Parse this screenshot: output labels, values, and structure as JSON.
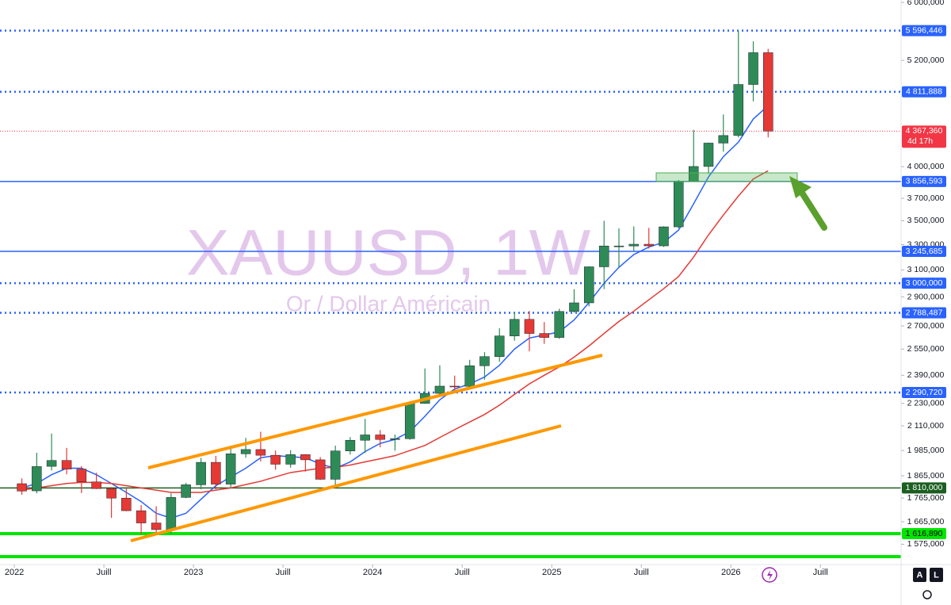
{
  "chart_data": {
    "type": "candlestick",
    "title": "XAUUSD, 1W",
    "subtitle": "Or / Dollar Américain",
    "log_scale": true,
    "up_color": "#2e8b57",
    "down_color": "#e53935",
    "xlim": [
      2021.92,
      2026.95
    ],
    "xticks": [
      2022,
      {
        "value": 2022.5,
        "label": "Juill"
      },
      2023,
      {
        "value": 2023.5,
        "label": "Juill"
      },
      2024,
      {
        "value": 2024.5,
        "label": "Juill"
      },
      2025,
      {
        "value": 2025.5,
        "label": "Juill"
      },
      2026,
      {
        "value": 2026.5,
        "label": "Juill"
      }
    ],
    "ylim": [
      1498,
      6036
    ],
    "yticks": [
      {
        "value": 1575,
        "label": "1 575,000"
      },
      {
        "value": 1665,
        "label": "1 665,000"
      },
      {
        "value": 1765,
        "label": "1 765,000"
      },
      {
        "value": 1865,
        "label": "1 865,000"
      },
      {
        "value": 1985,
        "label": "1 985,000"
      },
      {
        "value": 2110,
        "label": "2 110,000"
      },
      {
        "value": 2230,
        "label": "2 230,000"
      },
      {
        "value": 2390,
        "label": "2 390,000"
      },
      {
        "value": 2550,
        "label": "2 550,000"
      },
      {
        "value": 2700,
        "label": "2 700,000"
      },
      {
        "value": 2900,
        "label": "2 900,000"
      },
      {
        "value": 3100,
        "label": "3 100,000"
      },
      {
        "value": 3300,
        "label": "3 300,000"
      },
      {
        "value": 3500,
        "label": "3 500,000"
      },
      {
        "value": 3700,
        "label": "3 700,000"
      },
      {
        "value": 4000,
        "label": "4 000,000"
      },
      {
        "value": 5200,
        "label": "5 200,000"
      },
      {
        "value": 6000,
        "label": "6 000,000"
      }
    ],
    "x": [
      2022.042,
      2022.125,
      2022.208,
      2022.292,
      2022.375,
      2022.458,
      2022.542,
      2022.625,
      2022.708,
      2022.792,
      2022.875,
      2022.958,
      2023.042,
      2023.125,
      2023.208,
      2023.292,
      2023.375,
      2023.458,
      2023.542,
      2023.625,
      2023.708,
      2023.792,
      2023.875,
      2023.958,
      2024.042,
      2024.125,
      2024.208,
      2024.292,
      2024.375,
      2024.458,
      2024.542,
      2024.625,
      2024.708,
      2024.792,
      2024.875,
      2024.958,
      2025.042,
      2025.125,
      2025.208,
      2025.292,
      2025.375,
      2025.458,
      2025.542,
      2025.625,
      2025.708,
      2025.792,
      2025.875,
      2025.958,
      2026.042,
      2026.125,
      2026.208
    ],
    "open": [
      1829,
      1797,
      1909,
      1937,
      1896,
      1837,
      1807,
      1765,
      1711,
      1660,
      1633,
      1768,
      1824,
      1928,
      1827,
      1969,
      1990,
      1962,
      1919,
      1965,
      1940,
      1849,
      1983,
      2036,
      2063,
      2040,
      2044,
      2230,
      2286,
      2327,
      2326,
      2447,
      2503,
      2634,
      2744,
      2650,
      2624,
      2798,
      2858,
      3124,
      3289,
      3289,
      3303,
      3290,
      3448,
      3858,
      4002,
      4240,
      4320,
      4900,
      5300
    ],
    "high": [
      1853,
      1974,
      2070,
      1998,
      1910,
      1879,
      1814,
      1807,
      1735,
      1730,
      1786,
      1833,
      1949,
      1959,
      2009,
      2048,
      2079,
      1985,
      1987,
      1967,
      1953,
      2009,
      2052,
      2146,
      2088,
      2065,
      2223,
      2431,
      2450,
      2388,
      2483,
      2531,
      2685,
      2790,
      2801,
      2726,
      2817,
      2956,
      3128,
      3500,
      3435,
      3452,
      3439,
      3453,
      3871,
      4381,
      4245,
      4550,
      5596,
      5450,
      5350
    ],
    "low": [
      1780,
      1786,
      1890,
      1872,
      1787,
      1805,
      1681,
      1709,
      1615,
      1617,
      1616,
      1765,
      1804,
      1804,
      1810,
      1950,
      1932,
      1893,
      1903,
      1884,
      1846,
      1810,
      1965,
      1973,
      2001,
      1984,
      2039,
      2228,
      2277,
      2286,
      2353,
      2364,
      2471,
      2603,
      2536,
      2583,
      2615,
      2790,
      2833,
      2957,
      3121,
      3247,
      3268,
      3281,
      3436,
      3886,
      3930,
      4150,
      4300,
      4700,
      4300
    ],
    "close": [
      1796,
      1908,
      1937,
      1896,
      1837,
      1807,
      1765,
      1711,
      1660,
      1633,
      1768,
      1824,
      1928,
      1827,
      1969,
      1990,
      1962,
      1919,
      1965,
      1940,
      1849,
      1983,
      2036,
      2063,
      2040,
      2044,
      2230,
      2286,
      2327,
      2326,
      2447,
      2503,
      2634,
      2744,
      2650,
      2624,
      2798,
      2858,
      3124,
      3289,
      3289,
      3303,
      3290,
      3448,
      3858,
      4002,
      4240,
      4320,
      4900,
      5300,
      4367.36
    ],
    "series": [
      {
        "color": "#2962ff",
        "values": [
          1810,
          1830,
          1870,
          1900,
          1900,
          1870,
          1830,
          1790,
          1750,
          1700,
          1680,
          1700,
          1760,
          1820,
          1860,
          1900,
          1950,
          1960,
          1955,
          1950,
          1920,
          1900,
          1930,
          1980,
          2020,
          2040,
          2080,
          2160,
          2250,
          2310,
          2340,
          2380,
          2450,
          2550,
          2620,
          2640,
          2660,
          2740,
          2860,
          3000,
          3120,
          3220,
          3280,
          3320,
          3420,
          3650,
          3900,
          4100,
          4250,
          4500,
          4650
        ]
      },
      {
        "color": "#e53935",
        "values": [
          1800,
          1810,
          1820,
          1830,
          1835,
          1835,
          1830,
          1820,
          1810,
          1800,
          1790,
          1790,
          1790,
          1800,
          1810,
          1825,
          1840,
          1860,
          1880,
          1890,
          1900,
          1905,
          1915,
          1930,
          1945,
          1960,
          1985,
          2010,
          2050,
          2090,
          2130,
          2170,
          2220,
          2280,
          2340,
          2390,
          2440,
          2500,
          2570,
          2650,
          2730,
          2800,
          2880,
          2960,
          3050,
          3200,
          3380,
          3550,
          3720,
          3880,
          3960
        ]
      }
    ],
    "levels": [
      {
        "value": 5596.446,
        "label": "5 596,446",
        "color": "#2962ff",
        "style": "dotted"
      },
      {
        "value": 4811.888,
        "label": "4 811,888",
        "color": "#2962ff",
        "style": "dotted"
      },
      {
        "value": 4367.36,
        "label": "4 367,360",
        "color": "#f23645",
        "style": "thin-dotted",
        "countdown": "4d 17h"
      },
      {
        "value": 3856.593,
        "label": "3 856,593",
        "color": "#2962ff",
        "style": "solid"
      },
      {
        "value": 3245.685,
        "label": "3 245,685",
        "color": "#2962ff",
        "style": "solid"
      },
      {
        "value": 3000,
        "label": "3 000,000",
        "color": "#2962ff",
        "style": "dotted"
      },
      {
        "value": 2788.487,
        "label": "2 788,487",
        "color": "#2962ff",
        "style": "dotted"
      },
      {
        "value": 2290.72,
        "label": "2 290,720",
        "color": "#2962ff",
        "style": "dotted"
      },
      {
        "value": 1810,
        "label": "1 810,000",
        "color": "#1b5e20",
        "style": "solid"
      },
      {
        "value": 1616.89,
        "label": "1 616,890",
        "color": "#00e600",
        "style": "thick"
      }
    ],
    "buttons": [
      "A",
      "L"
    ]
  }
}
